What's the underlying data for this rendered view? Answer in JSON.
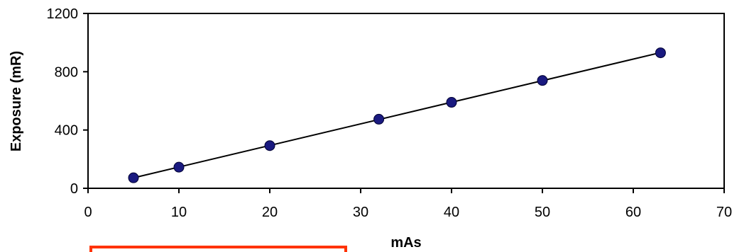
{
  "chart_data": {
    "type": "scatter",
    "title": "",
    "xlabel": "mAs",
    "ylabel": "Exposure (mR)",
    "xlim": [
      0,
      70
    ],
    "ylim": [
      0,
      1200
    ],
    "xticks": [
      0,
      10,
      20,
      30,
      40,
      50,
      60,
      70
    ],
    "yticks": [
      0,
      400,
      800,
      1200
    ],
    "grid": false,
    "legend": "none",
    "trendline": "linear",
    "series": [
      {
        "x": [
          5,
          10,
          20,
          32,
          40,
          50,
          63
        ],
        "y": [
          72,
          145,
          293,
          474,
          590,
          740,
          930
        ],
        "marker_color": "#1a1a80",
        "line_color": "#000000"
      }
    ]
  },
  "annotation_box_color": "#ff3300"
}
